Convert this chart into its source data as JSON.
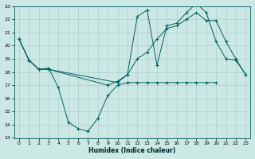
{
  "xlabel": "Humidex (Indice chaleur)",
  "background_color": "#cce8e5",
  "grid_color": "#aacfcc",
  "line_color": "#006060",
  "xlim": [
    -0.5,
    23.5
  ],
  "ylim": [
    13,
    23
  ],
  "yticks": [
    13,
    14,
    15,
    16,
    17,
    18,
    19,
    20,
    21,
    22,
    23
  ],
  "xticks": [
    0,
    1,
    2,
    3,
    4,
    5,
    6,
    7,
    8,
    9,
    10,
    11,
    12,
    13,
    14,
    15,
    16,
    17,
    18,
    19,
    20,
    21,
    22,
    23
  ],
  "series": [
    {
      "x": [
        0,
        1,
        2,
        3,
        4,
        5,
        6,
        7,
        8,
        9,
        10,
        11,
        12,
        13,
        14,
        15,
        16,
        17,
        18,
        19,
        20
      ],
      "y": [
        20.5,
        18.9,
        18.2,
        18.3,
        16.8,
        14.2,
        13.7,
        13.5,
        14.5,
        16.2,
        17.0,
        17.2,
        17.2,
        17.2,
        17.2,
        17.2,
        17.2,
        17.2,
        17.2,
        17.2,
        17.2
      ]
    },
    {
      "x": [
        0,
        1,
        2,
        3,
        9,
        10,
        11,
        12,
        13,
        14,
        15,
        16,
        17,
        18,
        19,
        20,
        21,
        22,
        23
      ],
      "y": [
        20.5,
        18.9,
        18.2,
        18.2,
        17.0,
        17.3,
        17.8,
        19.0,
        19.5,
        20.5,
        21.3,
        21.5,
        22.0,
        22.5,
        21.9,
        21.9,
        20.3,
        19.0,
        17.8
      ]
    },
    {
      "x": [
        0,
        1,
        2,
        3,
        10,
        11,
        12,
        13,
        14,
        15,
        16,
        17,
        18,
        19,
        20,
        21,
        22,
        23
      ],
      "y": [
        20.5,
        18.9,
        18.2,
        18.2,
        17.2,
        17.8,
        22.2,
        22.7,
        18.5,
        21.5,
        21.7,
        22.5,
        23.2,
        22.5,
        20.3,
        19.0,
        18.9,
        17.8
      ]
    }
  ]
}
